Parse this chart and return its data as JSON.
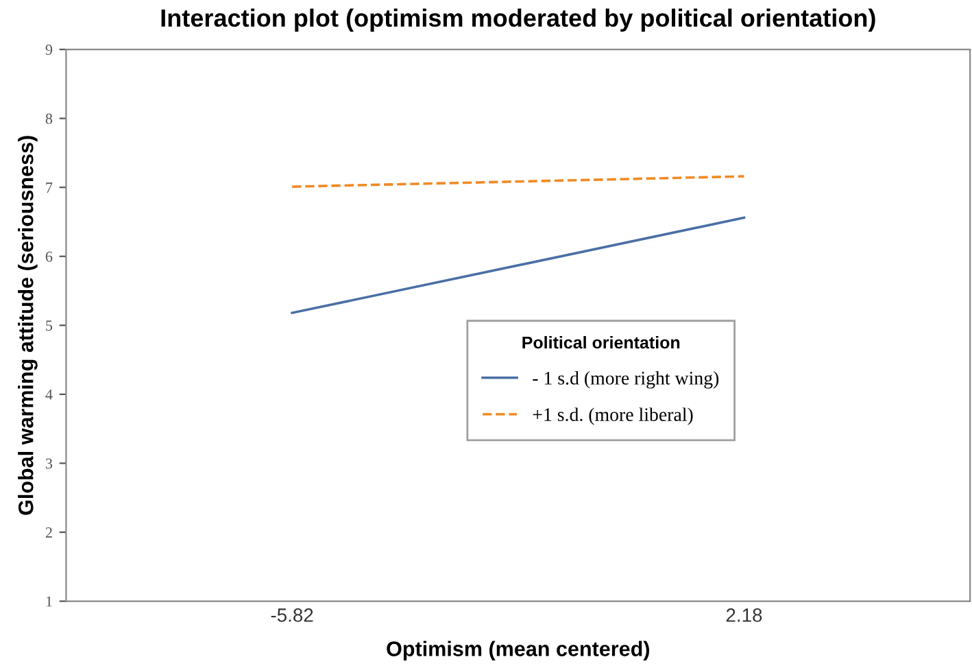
{
  "chart_data": {
    "type": "line",
    "title": "Interaction plot (optimism moderated by political orientation)",
    "xlabel": "Optimism (mean centered)",
    "ylabel": "Global warming attitude (seriousness)",
    "legend_title": "Political orientation",
    "categories": [
      "-5.82",
      "2.18"
    ],
    "series": [
      {
        "name": "- 1 s.d (more right wing)",
        "color": "#4a6fa5",
        "values": [
          5.18,
          6.56
        ],
        "line_style": "solid"
      },
      {
        "name": "+1 s.d. (more liberal)",
        "color": "#f08a24",
        "values": [
          7.01,
          7.16
        ],
        "line_style": "dashed"
      }
    ],
    "ylim": [
      1,
      9
    ],
    "yticks": [
      1,
      2,
      3,
      4,
      5,
      6,
      7,
      8,
      9
    ],
    "grid": false,
    "legend": "center right",
    "marker": "none"
  }
}
